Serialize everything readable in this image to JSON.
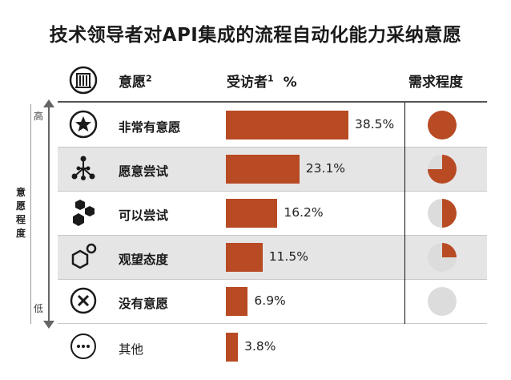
{
  "title": "技术领导者对API集成的流程自动化能力采纳意愿",
  "headers": {
    "willingness": "意愿",
    "willingness_sup": "2",
    "respondents": "受访者",
    "respondents_sup": "1",
    "percent_symbol": "%",
    "demand": "需求程度"
  },
  "axis": {
    "high": "高",
    "low": "低",
    "label_chars": [
      "意",
      "愿",
      "程",
      "度"
    ]
  },
  "chart_data": {
    "type": "bar",
    "title": "技术领导者对API集成的流程自动化能力采纳意愿",
    "categories": [
      "非常有意愿",
      "愿意尝试",
      "可以尝试",
      "观望态度",
      "没有意愿",
      "其他"
    ],
    "values": [
      38.5,
      23.1,
      16.2,
      11.5,
      6.9,
      3.8
    ],
    "value_labels": [
      "38.5%",
      "23.1%",
      "16.2%",
      "11.5%",
      "6.9%",
      "3.8%"
    ],
    "demand_level_fraction": [
      1.0,
      0.75,
      0.5,
      0.25,
      0.0,
      null
    ],
    "colors": {
      "bar": "#b84a24",
      "pie_fill": "#b84a24",
      "pie_empty": "#dcdcdc"
    },
    "icons": [
      "star-icon",
      "network-icon",
      "hexagons-icon",
      "hexagon-circle-icon",
      "x-circle-icon",
      "ellipsis-circle-icon"
    ]
  }
}
